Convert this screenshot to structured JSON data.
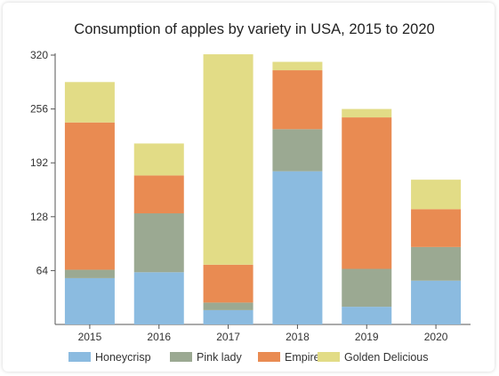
{
  "chart_data": {
    "type": "bar",
    "stacked": true,
    "title": "Consumption of apples by variety in USA, 2015 to 2020",
    "xlabel": "",
    "ylabel": "",
    "categories": [
      "2015",
      "2016",
      "2017",
      "2018",
      "2019",
      "2020"
    ],
    "ylim": [
      0,
      320
    ],
    "yticks": [
      64,
      128,
      192,
      256,
      320
    ],
    "grid": false,
    "legend_position": "bottom",
    "series": [
      {
        "name": "Honeycrisp",
        "color": "#8bbbe0",
        "values": [
          55,
          62,
          17,
          182,
          21,
          52
        ]
      },
      {
        "name": "Pink lady",
        "color": "#9ba992",
        "values": [
          10,
          70,
          9,
          50,
          45,
          40
        ]
      },
      {
        "name": "Empire",
        "color": "#e98b52",
        "values": [
          175,
          45,
          45,
          70,
          180,
          45
        ]
      },
      {
        "name": "Golden Delicious",
        "color": "#e2dc86",
        "values": [
          48,
          38,
          250,
          10,
          10,
          35
        ]
      }
    ]
  }
}
